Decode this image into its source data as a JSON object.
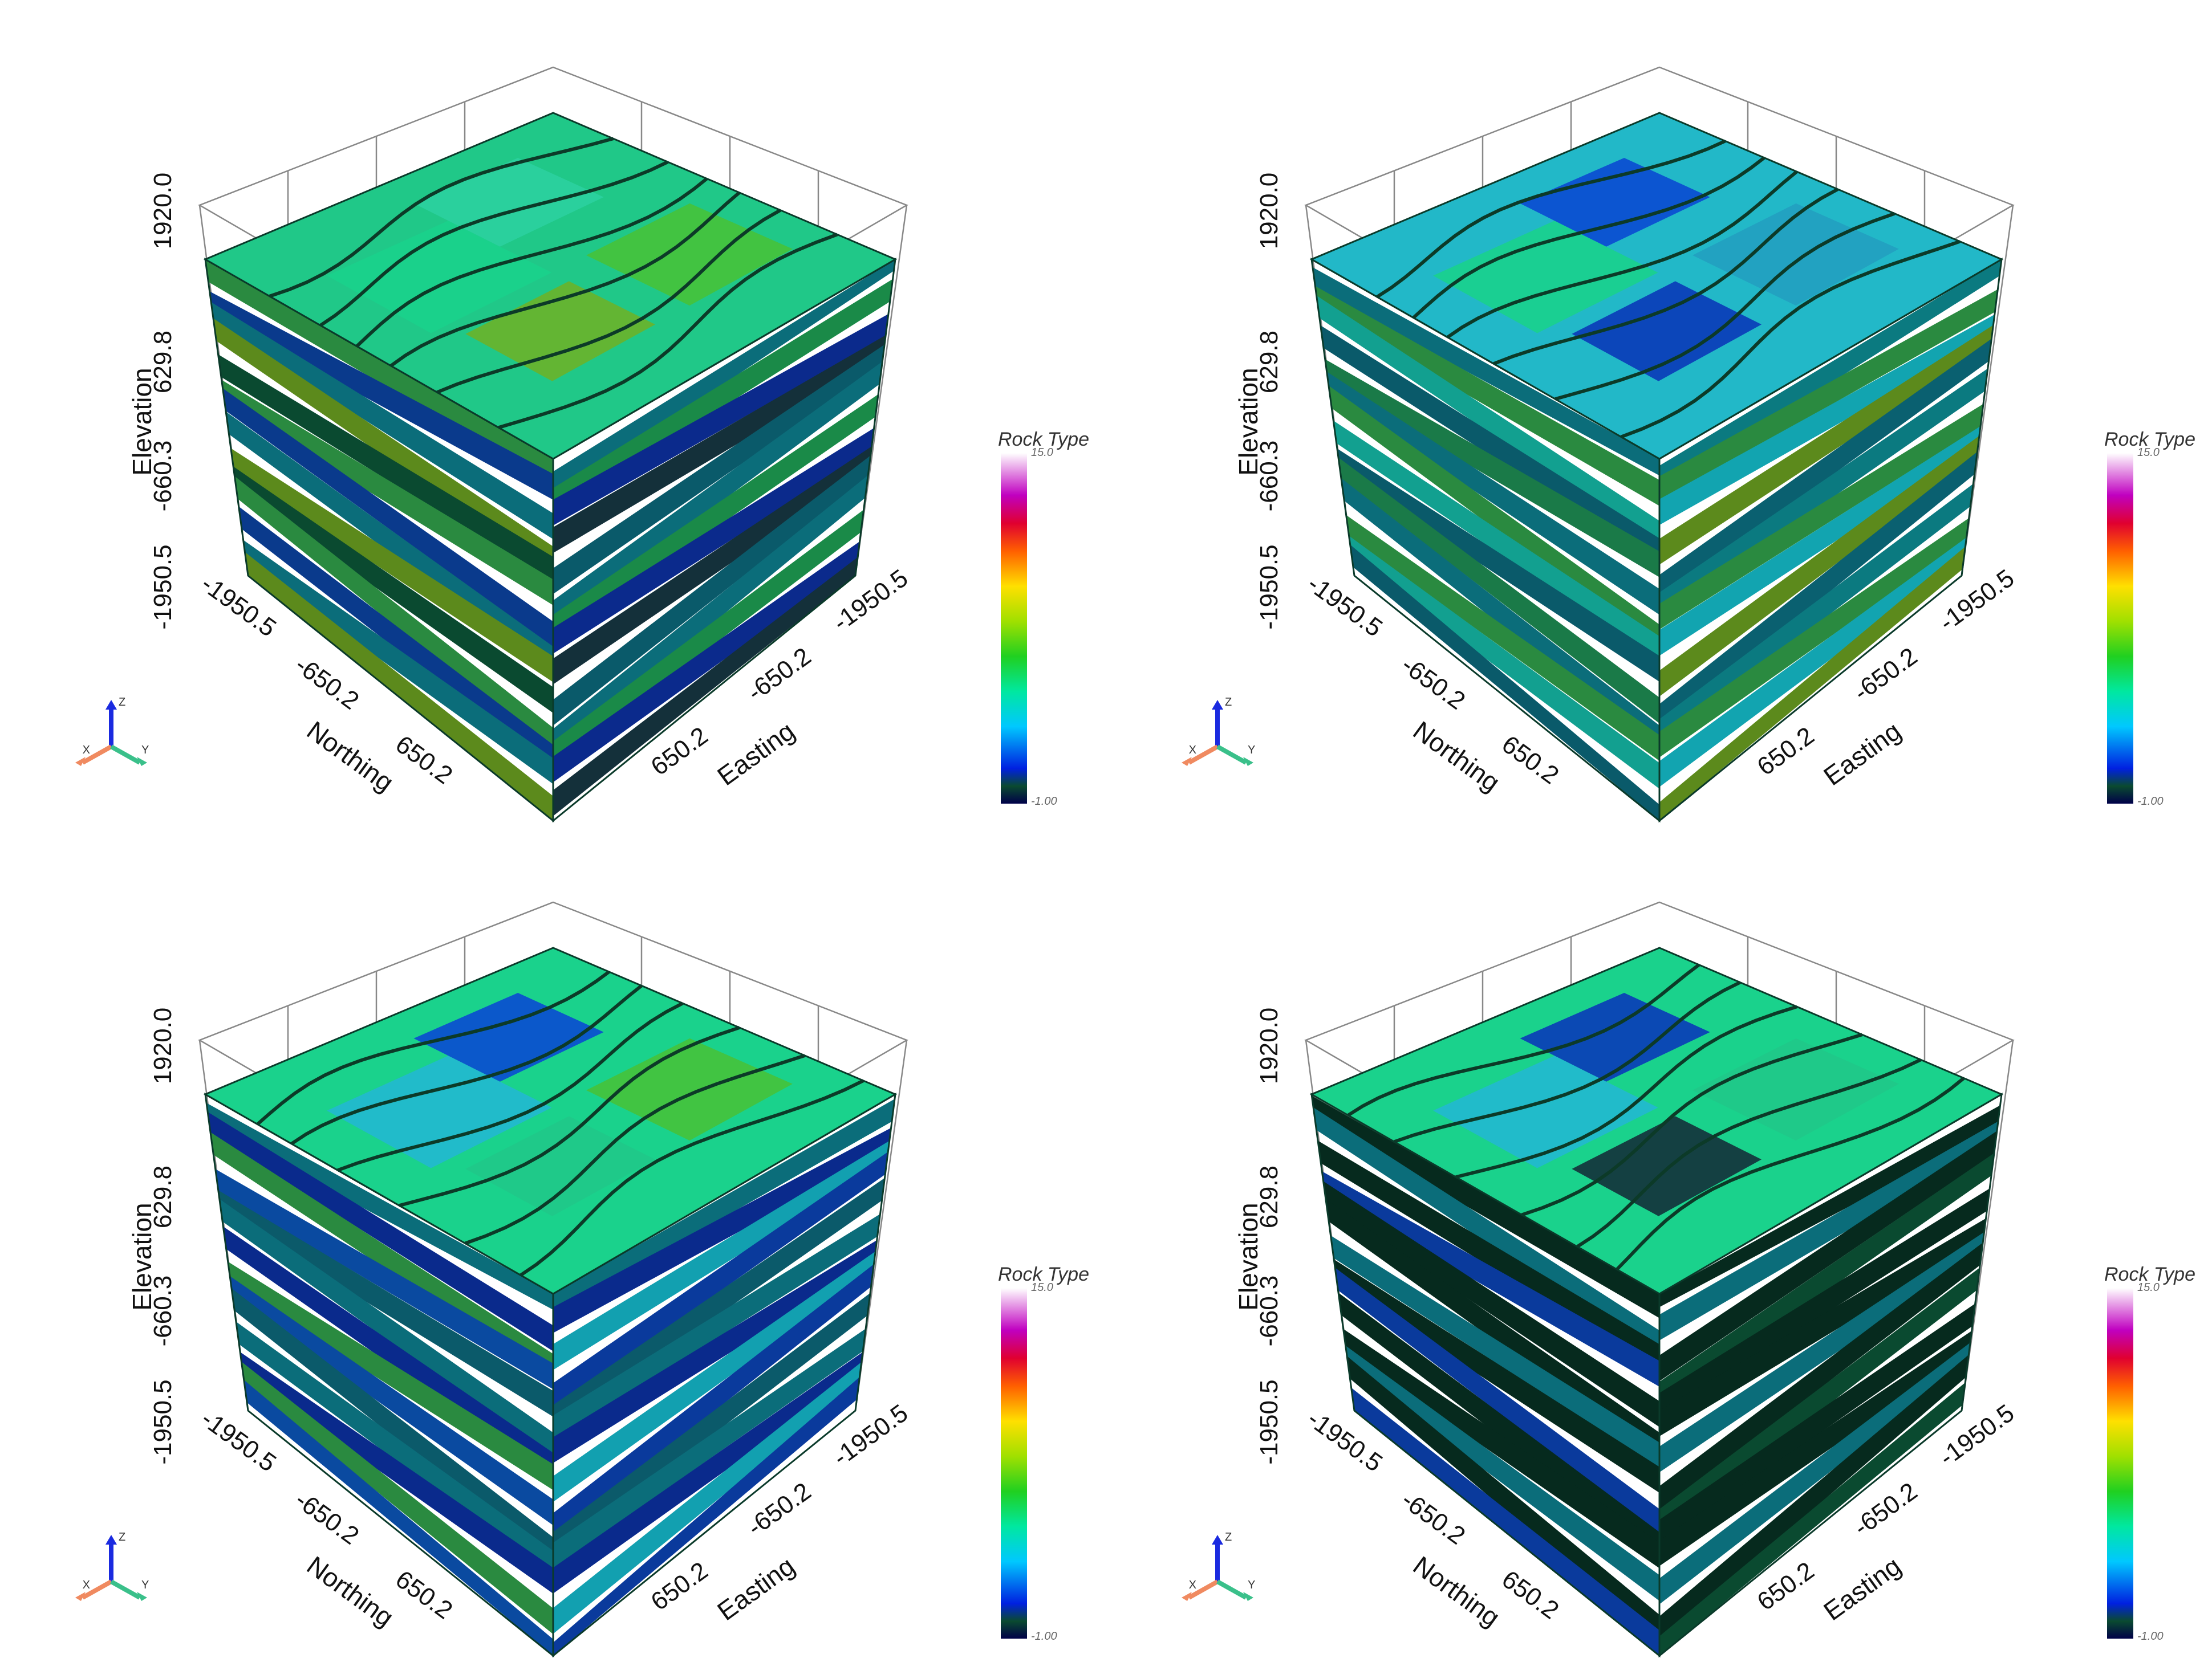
{
  "panels": [
    {
      "axes": {
        "elevation_title": "Elevation",
        "northing_title": "Northing",
        "easting_title": "Easting",
        "elevation_ticks": [
          "1920.0",
          "629.8",
          "-660.3",
          "-1950.5"
        ],
        "northing_ticks": [
          "-1950.5",
          "-650.2",
          "650.2"
        ],
        "easting_ticks": [
          "650.2",
          "-650.2",
          "-1950.5"
        ]
      },
      "colorbar": {
        "title": "Rock Type",
        "max_label": "15.0",
        "min_label": "-1.00"
      },
      "triad": {
        "x": "X",
        "y": "Y",
        "z": "Z"
      },
      "palette": {
        "top": [
          "#20c888",
          "#1ad28c",
          "#2bd0a0",
          "#46c23a",
          "#6ab22a"
        ],
        "left": [
          "#2a8a40",
          "#0a3a8c",
          "#0b6d7a",
          "#5c8a1c",
          "#0a4a30"
        ],
        "right": [
          "#0b6d7a",
          "#1a8a48",
          "#0b2a8c",
          "#14303a",
          "#0a5a6a"
        ]
      }
    },
    {
      "axes": {
        "elevation_title": "Elevation",
        "northing_title": "Northing",
        "easting_title": "Easting",
        "elevation_ticks": [
          "1920.0",
          "629.8",
          "-660.3",
          "-1950.5"
        ],
        "northing_ticks": [
          "-1950.5",
          "-650.2",
          "650.2"
        ],
        "easting_ticks": [
          "650.2",
          "-650.2",
          "-1950.5"
        ]
      },
      "colorbar": {
        "title": "Rock Type",
        "max_label": "15.0",
        "min_label": "-1.00"
      },
      "triad": {
        "x": "X",
        "y": "Y",
        "z": "Z"
      },
      "palette": {
        "top": [
          "#22b8c8",
          "#1ad28c",
          "#0a4ad2",
          "#22a0c0",
          "#0a3ab8"
        ],
        "left": [
          "#0b6d7a",
          "#2a8a40",
          "#12a090",
          "#0a5a6a",
          "#1a7a48"
        ],
        "right": [
          "#0b7a80",
          "#2a8a40",
          "#12a4b0",
          "#5c8a1c",
          "#0a6070"
        ]
      }
    },
    {
      "axes": {
        "elevation_title": "Elevation",
        "northing_title": "Northing",
        "easting_title": "Easting",
        "elevation_ticks": [
          "1920.0",
          "629.8",
          "-660.3",
          "-1950.5"
        ],
        "northing_ticks": [
          "-1950.5",
          "-650.2",
          "650.2"
        ],
        "easting_ticks": [
          "650.2",
          "-650.2",
          "-1950.5"
        ]
      },
      "colorbar": {
        "title": "Rock Type",
        "max_label": "15.0",
        "min_label": "-1.00"
      },
      "triad": {
        "x": "X",
        "y": "Y",
        "z": "Z"
      },
      "palette": {
        "top": [
          "#1ad28c",
          "#22b8d0",
          "#0a4ad2",
          "#46c23a",
          "#20c888"
        ],
        "left": [
          "#0b6d7a",
          "#0a2a8c",
          "#2a8a40",
          "#0a4aa0",
          "#0b5a6a"
        ],
        "right": [
          "#0b6d7a",
          "#0a2a8c",
          "#12a0b0",
          "#0a3a9c",
          "#0b5a6a"
        ]
      }
    },
    {
      "axes": {
        "elevation_title": "Elevation",
        "northing_title": "Northing",
        "easting_title": "Easting",
        "elevation_ticks": [
          "1920.0",
          "629.8",
          "-660.3",
          "-1950.5"
        ],
        "northing_ticks": [
          "-1950.5",
          "-650.2",
          "650.2"
        ],
        "easting_ticks": [
          "650.2",
          "-650.2",
          "-1950.5"
        ]
      },
      "colorbar": {
        "title": "Rock Type",
        "max_label": "15.0",
        "min_label": "-1.00"
      },
      "triad": {
        "x": "X",
        "y": "Y",
        "z": "Z"
      },
      "palette": {
        "top": [
          "#1ad28c",
          "#22b8d0",
          "#0a3ab8",
          "#20c888",
          "#14303a"
        ],
        "left": [
          "#062a1e",
          "#0b6d7a",
          "#062a1e",
          "#0a3a9c",
          "#062a1e"
        ],
        "right": [
          "#062a1e",
          "#0b6d7a",
          "#062a1e",
          "#0a4a30",
          "#062a1e"
        ]
      }
    }
  ]
}
